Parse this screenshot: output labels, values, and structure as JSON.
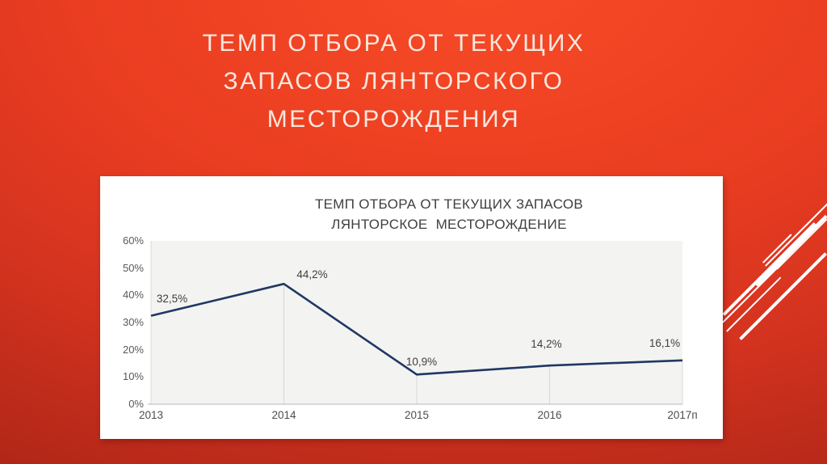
{
  "slide": {
    "title_lines": [
      "ТЕМП ОТБОРА ОТ ТЕКУЩИХ",
      "ЗАПАСОВ ЛЯНТОРСКОГО",
      "МЕСТОРОЖДЕНИЯ"
    ],
    "colors": {
      "background_top": "#f74b27",
      "background_bottom": "#92200f",
      "title_text": "#f9e7de",
      "stripe": "#ffffff",
      "panel": "#ffffff"
    }
  },
  "chart_data": {
    "type": "line",
    "title_lines": [
      "ТЕМП ОТБОРА ОТ ТЕКУЩИХ ЗАПАСОВ",
      "ЛЯНТОРСКОЕ  МЕСТОРОЖДЕНИЕ"
    ],
    "categories": [
      "2013",
      "2014",
      "2015",
      "2016",
      "2017п"
    ],
    "series": [
      {
        "values": [
          32.5,
          44.2,
          10.9,
          14.2,
          16.1
        ]
      }
    ],
    "data_labels": [
      "32,5%",
      "44,2%",
      "10,9%",
      "14,2%",
      "16,1%"
    ],
    "xlabel": "",
    "ylabel": "",
    "ylim": [
      0,
      60
    ],
    "yticks": [
      0,
      10,
      20,
      30,
      40,
      50,
      60
    ],
    "ytick_labels": [
      "0%",
      "10%",
      "20%",
      "30%",
      "40%",
      "50%",
      "60%"
    ],
    "grid": "drop-lines",
    "legend": "none",
    "line_color": "#1f3864",
    "plot_bg": "#f3f3f1",
    "axis_color": "#c4c4c4",
    "dropline_color": "#d8d8d8",
    "tick_color": "#595959",
    "label_color": "#3f3f3f"
  }
}
